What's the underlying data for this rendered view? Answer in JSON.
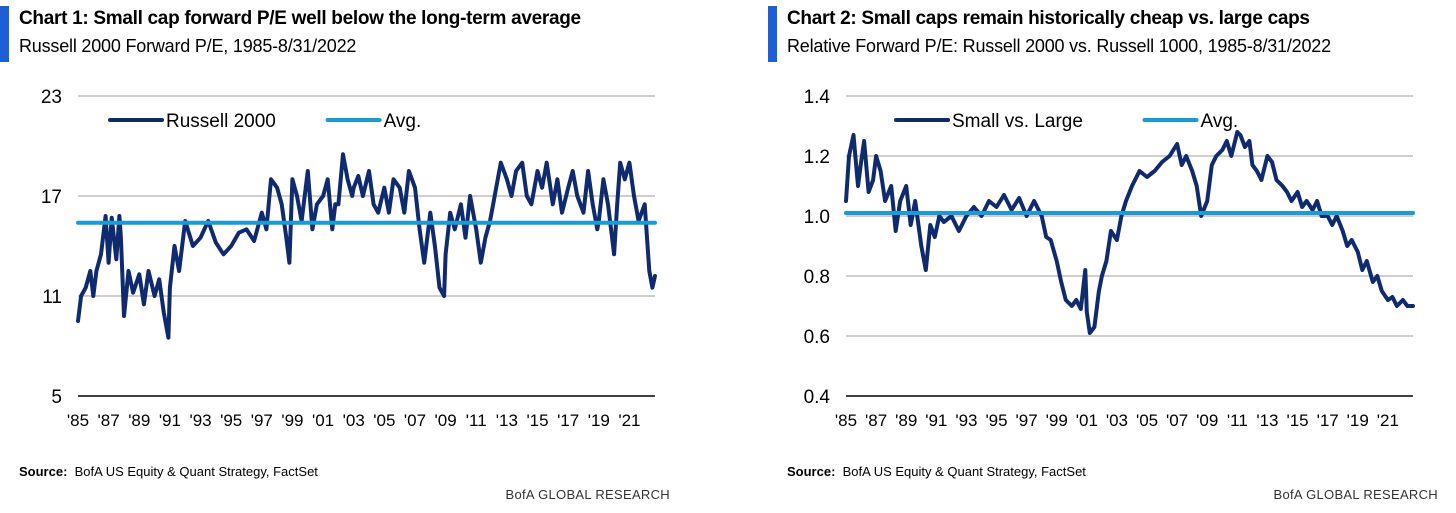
{
  "colors": {
    "accent": "#1f5fd6",
    "series_dark": "#0f2a6e",
    "series_avg": "#1a9ad6",
    "grid": "#bfbfbf",
    "axis": "#000000"
  },
  "brand": "BofA GLOBAL RESEARCH",
  "source_label": "Source:",
  "source_text": "BofA US Equity & Quant Strategy, FactSet",
  "chart_data": [
    {
      "type": "line",
      "title": "Chart 1: Small cap forward P/E well below the long-term average",
      "subtitle": "Russell 2000 Forward P/E, 1985-8/31/2022",
      "xlabel": "",
      "ylabel": "",
      "xlim": [
        1985,
        2022.67
      ],
      "ylim": [
        5,
        23
      ],
      "yticks": [
        "23",
        "17",
        "11",
        "5"
      ],
      "ytick_values": [
        23,
        17,
        11,
        5
      ],
      "xticks": [
        "'85",
        "'87",
        "'89",
        "'91",
        "'93",
        "'95",
        "'97",
        "'99",
        "'01",
        "'03",
        "'05",
        "'07",
        "'09",
        "'11",
        "'13",
        "'15",
        "'17",
        "'19",
        "'21"
      ],
      "xtick_values": [
        1985,
        1987,
        1989,
        1991,
        1993,
        1995,
        1997,
        1999,
        2001,
        2003,
        2005,
        2007,
        2009,
        2011,
        2013,
        2015,
        2017,
        2019,
        2021
      ],
      "grid": true,
      "legend_position": "top-left",
      "series": [
        {
          "name": "Russell 2000",
          "style": "dark",
          "x": [
            1985.0,
            1985.2,
            1985.5,
            1985.8,
            1986.0,
            1986.2,
            1986.5,
            1986.8,
            1987.0,
            1987.2,
            1987.5,
            1987.7,
            1987.8,
            1988.0,
            1988.3,
            1988.6,
            1989.0,
            1989.3,
            1989.6,
            1990.0,
            1990.3,
            1990.6,
            1990.9,
            1991.0,
            1991.3,
            1991.6,
            1992.0,
            1992.5,
            1993.0,
            1993.5,
            1994.0,
            1994.5,
            1995.0,
            1995.5,
            1996.0,
            1996.5,
            1997.0,
            1997.3,
            1997.6,
            1998.0,
            1998.3,
            1998.6,
            1998.8,
            1999.0,
            1999.3,
            1999.6,
            2000.0,
            2000.3,
            2000.6,
            2001.0,
            2001.3,
            2001.6,
            2001.8,
            2002.0,
            2002.3,
            2002.6,
            2002.9,
            2003.0,
            2003.3,
            2003.6,
            2004.0,
            2004.3,
            2004.6,
            2005.0,
            2005.3,
            2005.6,
            2006.0,
            2006.3,
            2006.6,
            2007.0,
            2007.3,
            2007.6,
            2008.0,
            2008.3,
            2008.6,
            2008.9,
            2009.0,
            2009.3,
            2009.6,
            2010.0,
            2010.3,
            2010.6,
            2011.0,
            2011.3,
            2011.6,
            2011.9,
            2012.0,
            2012.3,
            2012.6,
            2013.0,
            2013.3,
            2013.6,
            2014.0,
            2014.3,
            2014.6,
            2015.0,
            2015.3,
            2015.6,
            2016.0,
            2016.3,
            2016.6,
            2017.0,
            2017.3,
            2017.6,
            2018.0,
            2018.3,
            2018.6,
            2018.9,
            2019.0,
            2019.3,
            2019.6,
            2020.0,
            2020.2,
            2020.4,
            2020.7,
            2021.0,
            2021.3,
            2021.6,
            2022.0,
            2022.3,
            2022.5,
            2022.67
          ],
          "y": [
            9.5,
            11.0,
            11.5,
            12.5,
            11.0,
            12.5,
            13.5,
            15.8,
            13.0,
            15.7,
            13.2,
            15.8,
            14.5,
            9.8,
            12.5,
            11.2,
            12.3,
            10.5,
            12.5,
            11.0,
            12.0,
            10.0,
            8.5,
            11.5,
            14.0,
            12.5,
            15.5,
            14.0,
            14.5,
            15.5,
            14.2,
            13.5,
            14.0,
            14.8,
            15.0,
            14.3,
            16.0,
            15.0,
            18.0,
            17.5,
            16.5,
            14.5,
            13.0,
            18.0,
            17.0,
            15.5,
            18.5,
            15.0,
            16.5,
            17.0,
            18.0,
            15.0,
            16.5,
            16.5,
            19.5,
            18.0,
            17.0,
            17.5,
            18.2,
            17.0,
            18.5,
            16.5,
            16.0,
            17.5,
            16.0,
            18.0,
            17.5,
            16.0,
            18.5,
            17.5,
            15.0,
            13.0,
            16.0,
            14.0,
            11.5,
            11.0,
            13.5,
            16.0,
            15.0,
            16.5,
            14.5,
            17.0,
            15.0,
            13.0,
            14.5,
            15.5,
            16.0,
            17.5,
            19.0,
            18.0,
            17.0,
            18.5,
            19.0,
            17.0,
            16.5,
            18.5,
            17.5,
            19.0,
            16.5,
            18.0,
            16.0,
            17.5,
            18.5,
            17.0,
            16.0,
            18.5,
            16.5,
            15.0,
            15.5,
            18.0,
            16.5,
            13.5,
            16.5,
            19.0,
            18.0,
            19.0,
            17.0,
            15.5,
            16.5,
            12.5,
            11.5,
            12.2
          ]
        },
        {
          "name": "Avg.",
          "style": "avg",
          "x": [
            1985.0,
            2022.67
          ],
          "y": [
            15.4,
            15.4
          ]
        }
      ]
    },
    {
      "type": "line",
      "title": "Chart 2: Small caps remain historically cheap vs. large caps",
      "subtitle": "Relative Forward P/E: Russell 2000 vs. Russell 1000, 1985-8/31/2022",
      "xlabel": "",
      "ylabel": "",
      "xlim": [
        1985,
        2022.67
      ],
      "ylim": [
        0.4,
        1.4
      ],
      "yticks": [
        "1.4",
        "1.2",
        "1.0",
        "0.8",
        "0.6",
        "0.4"
      ],
      "ytick_values": [
        1.4,
        1.2,
        1.0,
        0.8,
        0.6,
        0.4
      ],
      "xticks": [
        "'85",
        "'87",
        "'89",
        "'91",
        "'93",
        "'95",
        "'97",
        "'99",
        "'01",
        "'03",
        "'05",
        "'07",
        "'09",
        "'11",
        "'13",
        "'15",
        "'17",
        "'19",
        "'21"
      ],
      "xtick_values": [
        1985,
        1987,
        1989,
        1991,
        1993,
        1995,
        1997,
        1999,
        2001,
        2003,
        2005,
        2007,
        2009,
        2011,
        2013,
        2015,
        2017,
        2019,
        2021
      ],
      "grid": true,
      "legend_position": "top-left",
      "series": [
        {
          "name": "Small vs. Large",
          "style": "dark",
          "x": [
            1985.0,
            1985.2,
            1985.5,
            1985.8,
            1986.0,
            1986.2,
            1986.5,
            1986.8,
            1987.0,
            1987.3,
            1987.6,
            1988.0,
            1988.3,
            1988.6,
            1989.0,
            1989.3,
            1989.6,
            1990.0,
            1990.3,
            1990.6,
            1990.9,
            1991.2,
            1991.5,
            1992.0,
            1992.5,
            1993.0,
            1993.5,
            1994.0,
            1994.5,
            1995.0,
            1995.5,
            1996.0,
            1996.5,
            1997.0,
            1997.5,
            1998.0,
            1998.3,
            1998.6,
            1999.0,
            1999.3,
            1999.6,
            2000.0,
            2000.3,
            2000.6,
            2000.9,
            2001.0,
            2001.2,
            2001.5,
            2001.8,
            2002.0,
            2002.3,
            2002.6,
            2003.0,
            2003.3,
            2003.6,
            2004.0,
            2004.5,
            2005.0,
            2005.5,
            2006.0,
            2006.5,
            2007.0,
            2007.3,
            2007.6,
            2008.0,
            2008.3,
            2008.6,
            2009.0,
            2009.3,
            2009.6,
            2010.0,
            2010.3,
            2010.6,
            2011.0,
            2011.2,
            2011.5,
            2011.8,
            2012.0,
            2012.3,
            2012.6,
            2013.0,
            2013.3,
            2013.6,
            2014.0,
            2014.3,
            2014.6,
            2015.0,
            2015.3,
            2015.6,
            2016.0,
            2016.3,
            2016.6,
            2017.0,
            2017.3,
            2017.6,
            2018.0,
            2018.3,
            2018.6,
            2019.0,
            2019.3,
            2019.6,
            2020.0,
            2020.3,
            2020.6,
            2021.0,
            2021.3,
            2021.6,
            2022.0,
            2022.3,
            2022.67
          ],
          "y": [
            1.05,
            1.2,
            1.27,
            1.1,
            1.18,
            1.25,
            1.08,
            1.12,
            1.2,
            1.15,
            1.05,
            1.1,
            0.95,
            1.05,
            1.1,
            0.97,
            1.05,
            0.9,
            0.82,
            0.97,
            0.93,
            1.0,
            0.98,
            1.0,
            0.95,
            1.0,
            1.03,
            1.0,
            1.05,
            1.03,
            1.07,
            1.02,
            1.06,
            1.0,
            1.05,
            1.0,
            0.93,
            0.92,
            0.85,
            0.78,
            0.72,
            0.7,
            0.72,
            0.69,
            0.82,
            0.68,
            0.61,
            0.63,
            0.75,
            0.8,
            0.85,
            0.95,
            0.92,
            1.0,
            1.05,
            1.1,
            1.15,
            1.13,
            1.15,
            1.18,
            1.2,
            1.24,
            1.17,
            1.2,
            1.15,
            1.1,
            1.0,
            1.05,
            1.17,
            1.2,
            1.22,
            1.25,
            1.2,
            1.28,
            1.27,
            1.23,
            1.25,
            1.17,
            1.15,
            1.12,
            1.2,
            1.18,
            1.12,
            1.1,
            1.08,
            1.05,
            1.08,
            1.03,
            1.05,
            1.02,
            1.05,
            1.0,
            1.0,
            0.97,
            1.0,
            0.95,
            0.9,
            0.92,
            0.88,
            0.82,
            0.85,
            0.78,
            0.8,
            0.75,
            0.72,
            0.73,
            0.7,
            0.72,
            0.7,
            0.7
          ]
        },
        {
          "name": "Avg.",
          "style": "avg",
          "x": [
            1985.0,
            2022.67
          ],
          "y": [
            1.01,
            1.01
          ]
        }
      ]
    }
  ]
}
